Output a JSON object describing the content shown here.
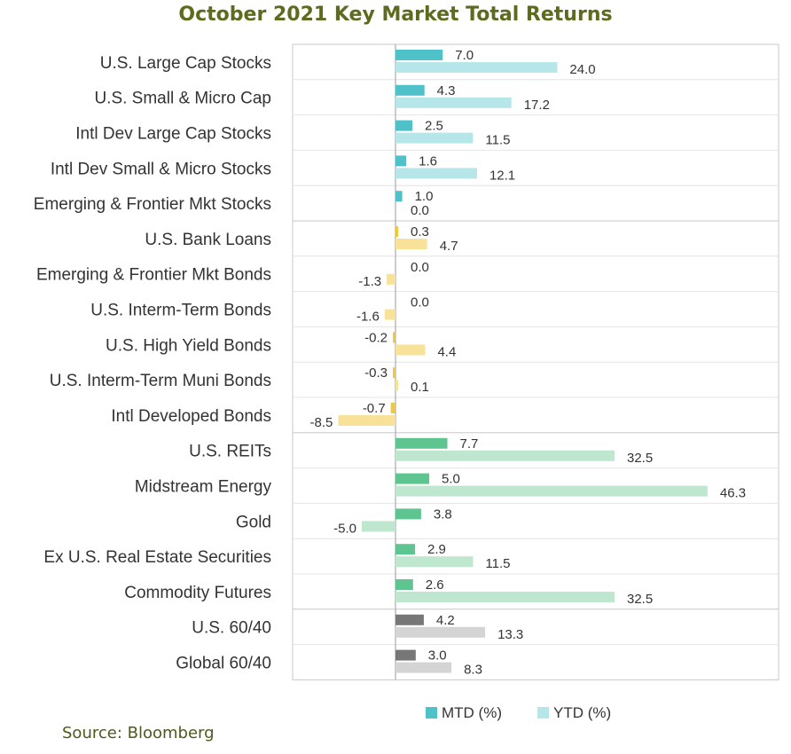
{
  "chart_data": {
    "type": "bar",
    "orientation": "horizontal",
    "title": "October 2021 Key Market Total Returns",
    "categories": [
      "U.S. Large Cap Stocks",
      "U.S. Small & Micro Cap",
      "Intl Dev Large Cap Stocks",
      "Intl Dev Small & Micro Stocks",
      "Emerging & Frontier Mkt Stocks",
      "U.S. Bank Loans",
      "Emerging & Frontier Mkt Bonds",
      "U.S. Interm-Term Bonds",
      "U.S. High Yield Bonds",
      "U.S. Interm-Term Muni Bonds",
      "Intl Developed Bonds",
      "U.S. REITs",
      "Midstream Energy",
      "Gold",
      "Ex U.S. Real Estate Securities",
      "Commodity Futures",
      "U.S. 60/40",
      "Global 60/40"
    ],
    "series": [
      {
        "name": "MTD (%)",
        "values": [
          7.0,
          4.3,
          2.5,
          1.6,
          1.0,
          0.3,
          0.0,
          0.0,
          -0.2,
          -0.3,
          -0.7,
          7.7,
          5.0,
          3.8,
          2.9,
          2.6,
          4.2,
          3.0
        ],
        "labels": [
          "7.0",
          "4.3",
          "2.5",
          "1.6",
          "1.0",
          "0.3",
          "0.0",
          "0.0",
          "-0.2",
          "-0.3",
          "-0.7",
          "7.7",
          "5.0",
          "3.8",
          "2.9",
          "2.6",
          "4.2",
          "3.0"
        ]
      },
      {
        "name": "YTD (%)",
        "values": [
          24.0,
          17.2,
          11.5,
          12.1,
          0.0,
          4.7,
          -1.3,
          -1.6,
          4.4,
          0.1,
          -8.5,
          32.5,
          46.3,
          -5.0,
          11.5,
          32.5,
          13.3,
          8.3
        ],
        "labels": [
          "24.0",
          "17.2",
          "11.5",
          "12.1",
          "0.0",
          "4.7",
          "-1.3",
          "-1.6",
          "4.4",
          "0.1",
          "-8.5",
          "32.5",
          "46.3",
          "-5.0",
          "11.5",
          "32.5",
          "13.3",
          "8.3"
        ]
      }
    ],
    "colors": {
      "equity_mtd": "#4fc1c9",
      "equity_ytd": "#b6e6ea",
      "bond_mtd": "#f0c93a",
      "bond_ytd": "#f8e29a",
      "real_mtd": "#5ec590",
      "real_ytd": "#bfe7cf",
      "balanced_mtd": "#777777",
      "balanced_ytd": "#d4d4d4"
    },
    "groups": [
      "equity",
      "equity",
      "equity",
      "equity",
      "equity",
      "bond",
      "bond",
      "bond",
      "bond",
      "bond",
      "bond",
      "real",
      "real",
      "real",
      "real",
      "real",
      "balanced",
      "balanced"
    ],
    "legend_position": "bottom",
    "grid": false
  },
  "source": "Source: Bloomberg"
}
